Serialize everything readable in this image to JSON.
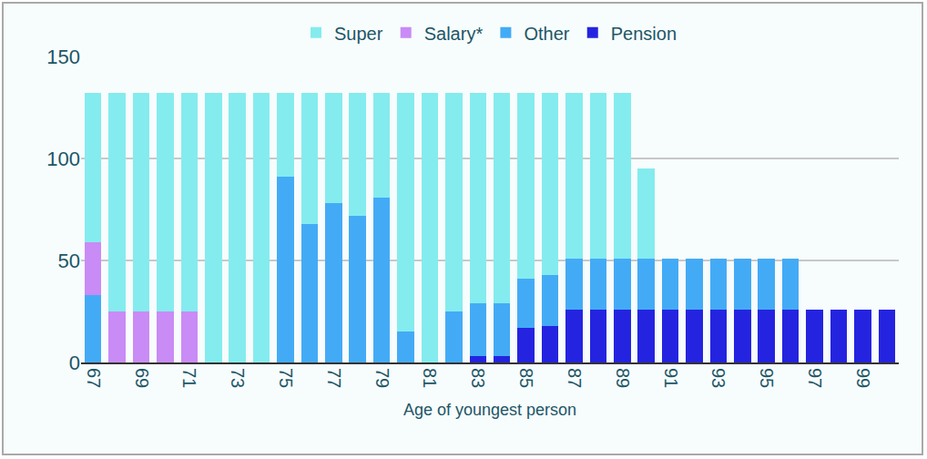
{
  "chart_data": {
    "type": "bar",
    "stacked": true,
    "grid": true,
    "legend": "top",
    "x_label": "Age of youngest person",
    "x": [
      67,
      68,
      69,
      70,
      71,
      72,
      73,
      74,
      75,
      76,
      77,
      78,
      79,
      80,
      81,
      82,
      83,
      84,
      85,
      86,
      87,
      88,
      89,
      90,
      91,
      92,
      93,
      94,
      95,
      96,
      97,
      98,
      99,
      100
    ],
    "xlim": [
      66.5,
      100.5
    ],
    "xticks": [
      67,
      69,
      71,
      73,
      75,
      77,
      79,
      81,
      83,
      85,
      87,
      89,
      91,
      93,
      95,
      97,
      99
    ],
    "ylim": [
      0,
      150
    ],
    "yticks": [
      0,
      50,
      100,
      150
    ],
    "series": [
      {
        "name": "Pension",
        "color": "#2424e0",
        "values": [
          0,
          0,
          0,
          0,
          0,
          0,
          0,
          0,
          0,
          0,
          0,
          0,
          0,
          0,
          0,
          0,
          3,
          3,
          17,
          18,
          26,
          26,
          26,
          26,
          26,
          26,
          26,
          26,
          26,
          26,
          26,
          26,
          26,
          26
        ]
      },
      {
        "name": "Other",
        "color": "#43abf6",
        "values": [
          33,
          0,
          0,
          0,
          0,
          0,
          0,
          0,
          91,
          68,
          78,
          72,
          81,
          15,
          0,
          25,
          26,
          26,
          24,
          25,
          25,
          25,
          25,
          25,
          25,
          25,
          25,
          25,
          25,
          25,
          0,
          0,
          0,
          0
        ]
      },
      {
        "name": "Salary*",
        "color": "#c98bf5",
        "values": [
          26,
          25,
          25,
          25,
          25,
          0,
          0,
          0,
          0,
          0,
          0,
          0,
          0,
          0,
          0,
          0,
          0,
          0,
          0,
          0,
          0,
          0,
          0,
          0,
          0,
          0,
          0,
          0,
          0,
          0,
          0,
          0,
          0,
          0
        ]
      },
      {
        "name": "Super",
        "color": "#84ecee",
        "values": [
          73,
          107,
          107,
          107,
          107,
          132,
          132,
          132,
          41,
          64,
          54,
          60,
          51,
          117,
          132,
          107,
          103,
          103,
          91,
          89,
          81,
          81,
          81,
          44,
          0,
          0,
          0,
          0,
          0,
          0,
          0,
          0,
          0,
          0
        ]
      }
    ]
  }
}
